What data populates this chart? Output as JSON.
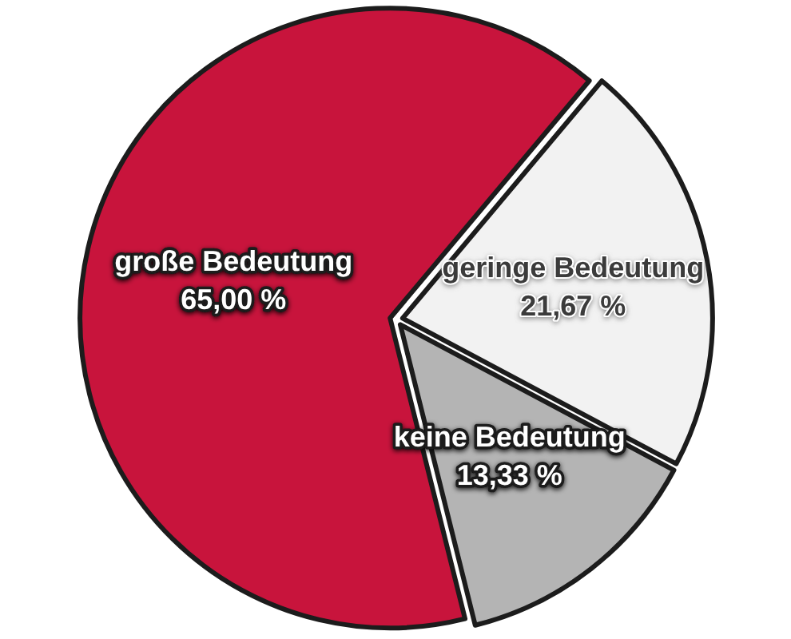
{
  "chart_data": {
    "type": "pie",
    "categories": [
      "große Bedeutung",
      "geringe Bedeutung",
      "keine Bedeutung"
    ],
    "values": [
      65.0,
      21.67,
      13.33
    ],
    "colors": [
      "#c8143c",
      "#f2f2f2",
      "#b4b4b4"
    ],
    "value_labels": [
      "65,00 %",
      "21,67 %",
      "13,33 %"
    ]
  }
}
